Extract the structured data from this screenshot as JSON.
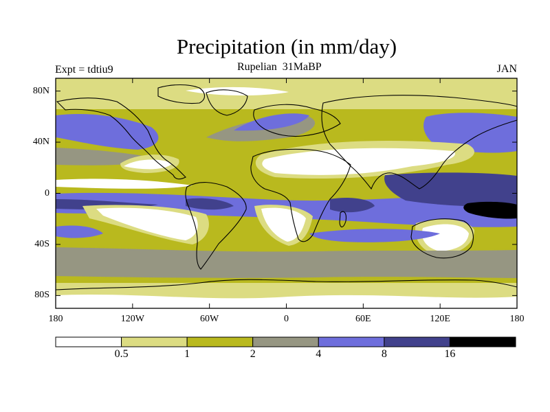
{
  "title": "Precipitation (in mm/day)",
  "subtitle": "Rupelian  31MaBP",
  "experiment": "Expt = tdtiu9",
  "month": "JAN",
  "map": {
    "projection": "equirectangular",
    "lon_range": [
      -180,
      180
    ],
    "lat_range": [
      -90,
      90
    ],
    "y_ticks": [
      {
        "label": "80N",
        "lat": 80
      },
      {
        "label": "40N",
        "lat": 40
      },
      {
        "label": "0",
        "lat": 0
      },
      {
        "label": "40S",
        "lat": -40
      },
      {
        "label": "80S",
        "lat": -80
      }
    ],
    "x_ticks": [
      {
        "label": "180",
        "lon": -180
      },
      {
        "label": "120W",
        "lon": -120
      },
      {
        "label": "60W",
        "lon": -60
      },
      {
        "label": "0",
        "lon": 0
      },
      {
        "label": "60E",
        "lon": 60
      },
      {
        "label": "120E",
        "lon": 120
      },
      {
        "label": "180",
        "lon": 180
      }
    ]
  },
  "colorbar": {
    "colors": [
      "#ffffff",
      "#dcdc82",
      "#b9b91e",
      "#969682",
      "#6e6edc",
      "#41418c",
      "#000000"
    ],
    "labels": [
      "0.5",
      "1",
      "2",
      "4",
      "8",
      "16"
    ]
  }
}
